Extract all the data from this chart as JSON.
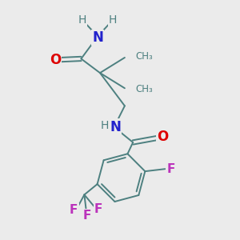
{
  "bg_color": "#ebebeb",
  "bond_color": "#4d8080",
  "bond_width": 1.4,
  "atom_colors": {
    "O": "#dd0000",
    "N": "#2222cc",
    "F": "#bb33bb",
    "C": "#4d8080",
    "H": "#4d8080"
  },
  "fig_bg": "#ebebeb"
}
